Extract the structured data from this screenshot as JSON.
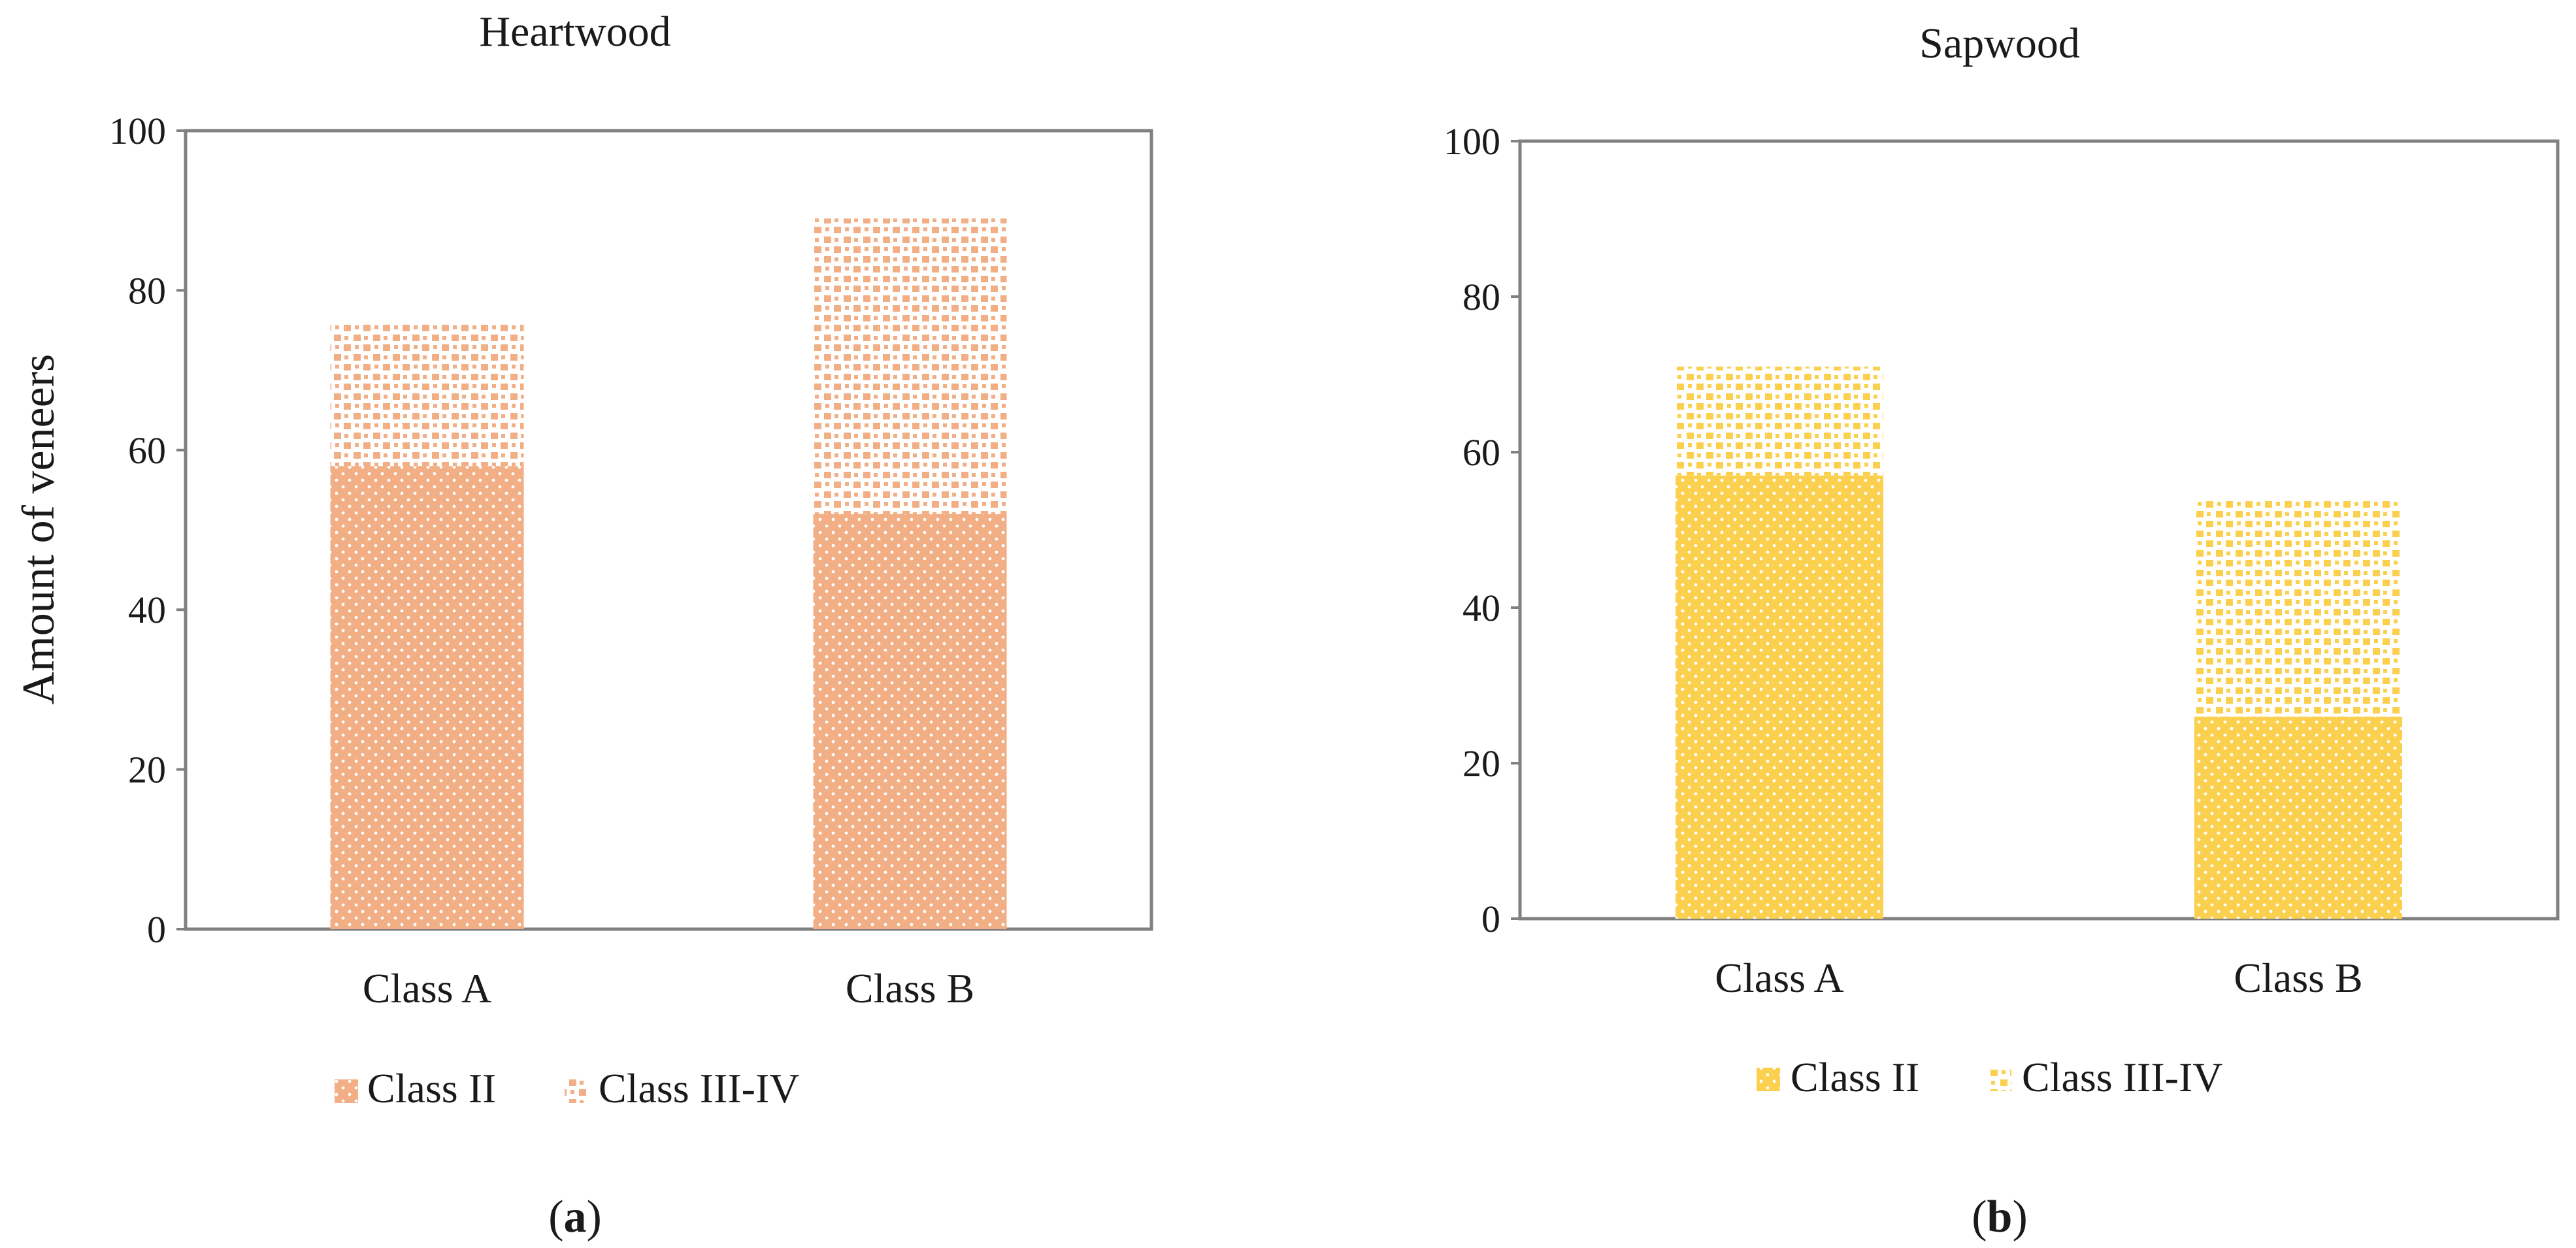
{
  "chart_data": [
    {
      "type": "bar",
      "stacked": true,
      "title": "Heartwood",
      "ylabel": "Amount of veneers",
      "xlabel": "",
      "categories": [
        "Class A",
        "Class B"
      ],
      "series": [
        {
          "name": "Class II",
          "values": [
            58,
            52
          ]
        },
        {
          "name": "Class III-IV",
          "values": [
            18,
            37
          ]
        }
      ],
      "ylim": [
        0,
        100
      ],
      "yticks": [
        0,
        20,
        40,
        60,
        80,
        100
      ],
      "grid": false,
      "legend": "bottom",
      "panel_label": "a",
      "colors": {
        "class_ii": "#f2ae84",
        "class_iii_iv": "#f2ae84"
      }
    },
    {
      "type": "bar",
      "stacked": true,
      "title": "Sapwood",
      "ylabel": "",
      "xlabel": "",
      "categories": [
        "Class A",
        "Class B"
      ],
      "series": [
        {
          "name": "Class II",
          "values": [
            57,
            26
          ]
        },
        {
          "name": "Class III-IV",
          "values": [
            14,
            28
          ]
        }
      ],
      "ylim": [
        0,
        100
      ],
      "yticks": [
        0,
        20,
        40,
        60,
        80,
        100
      ],
      "grid": false,
      "legend": "bottom",
      "panel_label": "b",
      "colors": {
        "class_ii": "#fcd04f",
        "class_iii_iv": "#fcd04f"
      }
    }
  ]
}
